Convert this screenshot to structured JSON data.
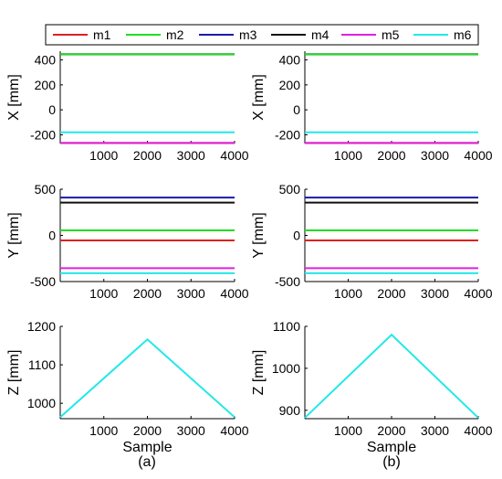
{
  "legend": {
    "entries": [
      {
        "name": "m1",
        "color": "#e02020"
      },
      {
        "name": "m2",
        "color": "#22dd22"
      },
      {
        "name": "m3",
        "color": "#1a1aa8"
      },
      {
        "name": "m4",
        "color": "#111111"
      },
      {
        "name": "m5",
        "color": "#e020e0"
      },
      {
        "name": "m6",
        "color": "#22e8e8"
      }
    ],
    "placement": "top"
  },
  "panel_captions": [
    "(a)",
    "(b)"
  ],
  "chart_data": [
    {
      "id": "a-x",
      "type": "line",
      "xlabel": "",
      "ylabel": "X [mm]",
      "xlim": [
        0,
        4000
      ],
      "ylim": [
        -270,
        470
      ],
      "xticks": [
        1000,
        2000,
        3000,
        4000
      ],
      "yticks": [
        400,
        200,
        0,
        -200
      ],
      "grid": false,
      "series": [
        {
          "name": "m1",
          "x": [
            0,
            4000
          ],
          "y": [
            -265,
            -265
          ]
        },
        {
          "name": "m5",
          "x": [
            0,
            4000
          ],
          "y": [
            -265,
            -265
          ]
        },
        {
          "name": "m3",
          "x": [
            0,
            4000
          ],
          "y": [
            445,
            445
          ]
        },
        {
          "name": "m4",
          "x": [
            0,
            4000
          ],
          "y": [
            445,
            445
          ]
        },
        {
          "name": "m2",
          "x": [
            0,
            4000
          ],
          "y": [
            445,
            445
          ]
        },
        {
          "name": "m6",
          "x": [
            0,
            4000
          ],
          "y": [
            -180,
            -180
          ]
        }
      ]
    },
    {
      "id": "b-x",
      "type": "line",
      "xlabel": "",
      "ylabel": "X [mm]",
      "xlim": [
        0,
        4000
      ],
      "ylim": [
        -270,
        470
      ],
      "xticks": [
        1000,
        2000,
        3000,
        4000
      ],
      "yticks": [
        400,
        200,
        0,
        -200
      ],
      "grid": false,
      "series": [
        {
          "name": "m1",
          "x": [
            0,
            4000
          ],
          "y": [
            -265,
            -265
          ]
        },
        {
          "name": "m5",
          "x": [
            0,
            4000
          ],
          "y": [
            -265,
            -265
          ]
        },
        {
          "name": "m3",
          "x": [
            0,
            4000
          ],
          "y": [
            445,
            445
          ]
        },
        {
          "name": "m4",
          "x": [
            0,
            4000
          ],
          "y": [
            445,
            445
          ]
        },
        {
          "name": "m2",
          "x": [
            0,
            4000
          ],
          "y": [
            445,
            445
          ]
        },
        {
          "name": "m6",
          "x": [
            0,
            4000
          ],
          "y": [
            -180,
            -180
          ]
        }
      ]
    },
    {
      "id": "a-y",
      "type": "line",
      "xlabel": "",
      "ylabel": "Y [mm]",
      "xlim": [
        0,
        4000
      ],
      "ylim": [
        -500,
        500
      ],
      "xticks": [
        1000,
        2000,
        3000,
        4000
      ],
      "yticks": [
        500,
        0,
        -500
      ],
      "grid": false,
      "series": [
        {
          "name": "m3",
          "x": [
            0,
            4000
          ],
          "y": [
            410,
            410
          ]
        },
        {
          "name": "m4",
          "x": [
            0,
            4000
          ],
          "y": [
            355,
            355
          ]
        },
        {
          "name": "m2",
          "x": [
            0,
            4000
          ],
          "y": [
            55,
            55
          ]
        },
        {
          "name": "m1",
          "x": [
            0,
            4000
          ],
          "y": [
            -55,
            -55
          ]
        },
        {
          "name": "m5",
          "x": [
            0,
            4000
          ],
          "y": [
            -355,
            -355
          ]
        },
        {
          "name": "m6",
          "x": [
            0,
            4000
          ],
          "y": [
            -410,
            -410
          ]
        }
      ]
    },
    {
      "id": "b-y",
      "type": "line",
      "xlabel": "",
      "ylabel": "Y [mm]",
      "xlim": [
        0,
        4000
      ],
      "ylim": [
        -500,
        500
      ],
      "xticks": [
        1000,
        2000,
        3000,
        4000
      ],
      "yticks": [
        500,
        0,
        -500
      ],
      "grid": false,
      "series": [
        {
          "name": "m3",
          "x": [
            0,
            4000
          ],
          "y": [
            410,
            410
          ]
        },
        {
          "name": "m4",
          "x": [
            0,
            4000
          ],
          "y": [
            355,
            355
          ]
        },
        {
          "name": "m2",
          "x": [
            0,
            4000
          ],
          "y": [
            55,
            55
          ]
        },
        {
          "name": "m1",
          "x": [
            0,
            4000
          ],
          "y": [
            -55,
            -55
          ]
        },
        {
          "name": "m5",
          "x": [
            0,
            4000
          ],
          "y": [
            -355,
            -355
          ]
        },
        {
          "name": "m6",
          "x": [
            0,
            4000
          ],
          "y": [
            -410,
            -410
          ]
        }
      ]
    },
    {
      "id": "a-z",
      "type": "line",
      "xlabel": "Sample",
      "ylabel": "Z [mm]",
      "xlim": [
        0,
        4000
      ],
      "ylim": [
        960,
        1200
      ],
      "xticks": [
        1000,
        2000,
        3000,
        4000
      ],
      "yticks": [
        1200,
        1100,
        1000
      ],
      "grid": false,
      "series": [
        {
          "name": "m6",
          "x": [
            0,
            2000,
            4000
          ],
          "y": [
            964,
            1166,
            964
          ]
        }
      ]
    },
    {
      "id": "b-z",
      "type": "line",
      "xlabel": "Sample",
      "ylabel": "Z [mm]",
      "xlim": [
        0,
        4000
      ],
      "ylim": [
        880,
        1100
      ],
      "xticks": [
        1000,
        2000,
        3000,
        4000
      ],
      "yticks": [
        1100,
        1000,
        900
      ],
      "grid": false,
      "series": [
        {
          "name": "m6",
          "x": [
            0,
            2000,
            4000
          ],
          "y": [
            882,
            1080,
            882
          ]
        }
      ]
    }
  ]
}
